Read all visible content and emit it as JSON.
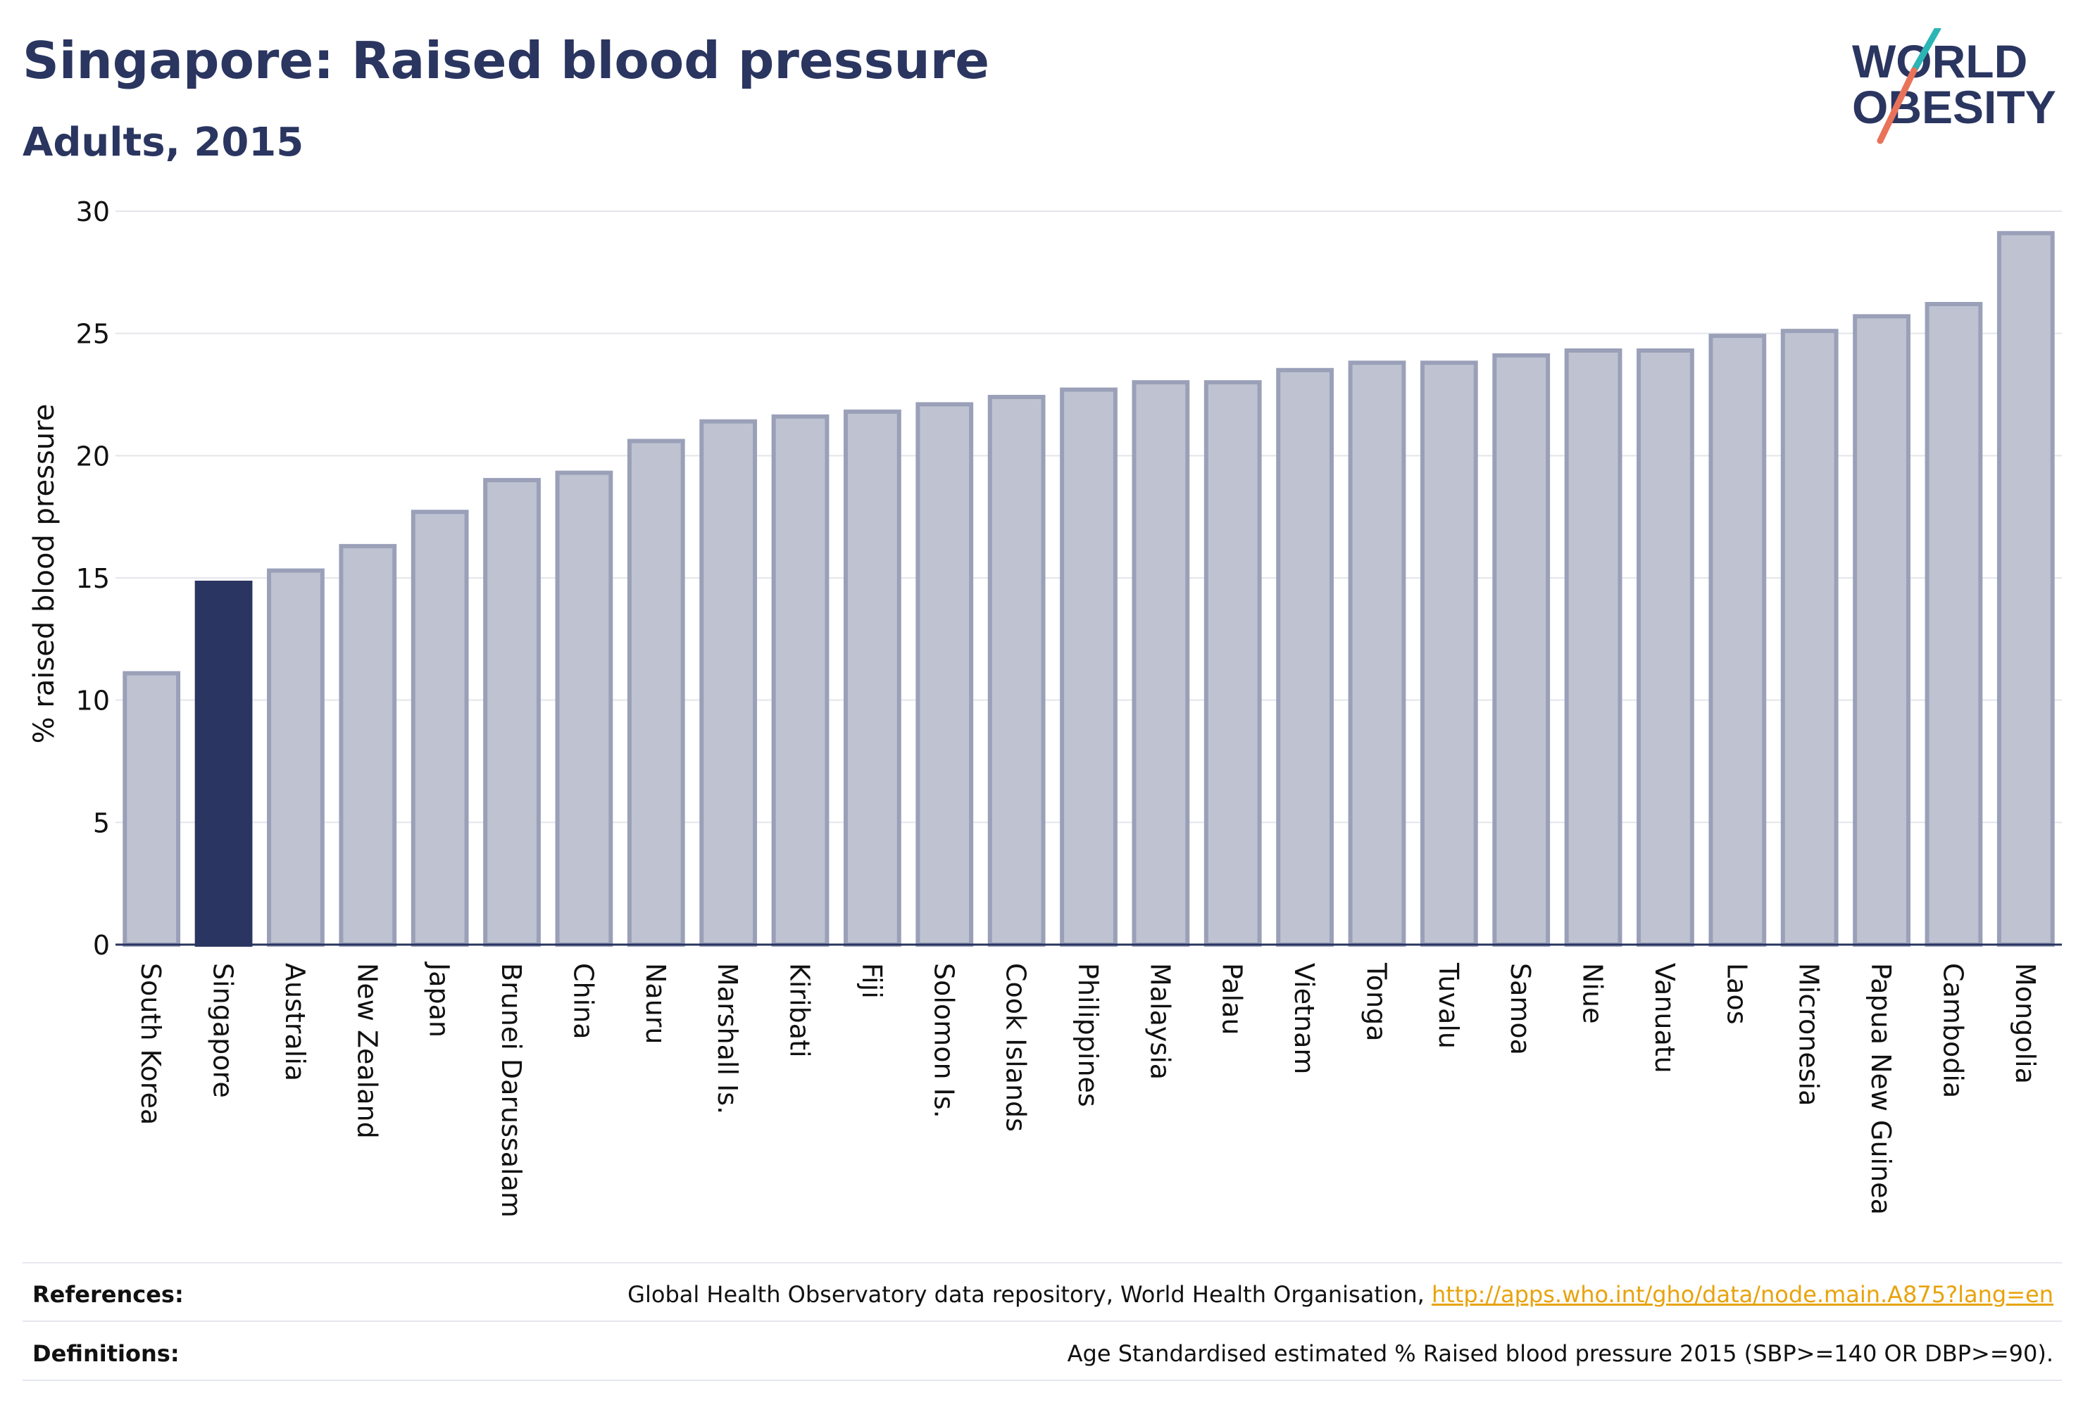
{
  "header": {
    "title": "Singapore: Raised blood pressure",
    "subtitle": "Adults, 2015"
  },
  "logo": {
    "line1": "WORLD",
    "line2": "OBESITY"
  },
  "chart_data": {
    "type": "bar",
    "ylabel": "% raised blood pressure",
    "ylim": [
      0,
      30
    ],
    "yticks": [
      0,
      5,
      10,
      15,
      20,
      25,
      30
    ],
    "grid": true,
    "highlight": "Singapore",
    "colors": {
      "bar": "#bfc3d1",
      "bar_edge": "#9aa0b8",
      "highlight": "#2b3561",
      "grid": "#e3e5ea",
      "axis": "#2a3560"
    },
    "categories": [
      "South Korea",
      "Singapore",
      "Australia",
      "New Zealand",
      "Japan",
      "Brunei Darussalam",
      "China",
      "Nauru",
      "Marshall Is.",
      "Kiribati",
      "Fiji",
      "Solomon Is.",
      "Cook Islands",
      "Philippines",
      "Malaysia",
      "Palau",
      "Vietnam",
      "Tonga",
      "Tuvalu",
      "Samoa",
      "Niue",
      "Vanuatu",
      "Laos",
      "Micronesia",
      "Papua New Guinea",
      "Cambodia",
      "Mongolia"
    ],
    "values": [
      11.1,
      14.8,
      15.3,
      16.3,
      17.7,
      19.0,
      19.3,
      20.6,
      21.4,
      21.6,
      21.8,
      22.1,
      22.4,
      22.7,
      23.0,
      23.0,
      23.5,
      23.8,
      23.8,
      24.1,
      24.3,
      24.3,
      24.9,
      25.1,
      25.7,
      26.2,
      29.1
    ]
  },
  "footer": {
    "references_label": "References:",
    "references_text": "Global Health Observatory data repository, World Health Organisation, ",
    "references_link": "http://apps.who.int/gho/data/node.main.A875?lang=en",
    "definitions_label": "Definitions:",
    "definitions_text": "Age Standardised estimated % Raised blood pressure 2015 (SBP>=140 OR DBP>=90)."
  }
}
